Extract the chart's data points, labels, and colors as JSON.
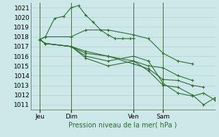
{
  "background_color": "#cce8e8",
  "grid_color": "#b0d0d0",
  "line_color": "#2d6a2d",
  "xlabel": "Pression niveau de la mer( hPa )",
  "yticks": [
    1011,
    1012,
    1013,
    1014,
    1015,
    1016,
    1017,
    1018,
    1019,
    1020,
    1021
  ],
  "ylim": [
    1010.5,
    1021.5
  ],
  "xtick_labels": [
    "Jeu",
    "Dim",
    "Ven",
    "Sam"
  ],
  "xtick_positions": [
    0.05,
    0.22,
    0.56,
    0.72
  ],
  "vline_positions": [
    0.05,
    0.22,
    0.56,
    0.72
  ],
  "xlim": [
    0.0,
    1.0
  ],
  "series": [
    {
      "x": [
        0.05,
        0.08,
        0.13,
        0.18,
        0.22,
        0.26,
        0.3,
        0.34,
        0.38,
        0.42,
        0.46,
        0.5,
        0.54,
        0.56
      ],
      "y": [
        1017.7,
        1018.0,
        1019.9,
        1020.1,
        1021.0,
        1021.2,
        1020.2,
        1019.5,
        1018.7,
        1018.2,
        1017.8,
        1017.8,
        1017.8,
        1017.8
      ]
    },
    {
      "x": [
        0.05,
        0.08,
        0.22,
        0.3,
        0.42,
        0.56,
        0.64,
        0.72,
        0.8,
        0.88
      ],
      "y": [
        1017.7,
        1018.0,
        1018.0,
        1018.7,
        1018.7,
        1018.2,
        1017.8,
        1016.3,
        1015.5,
        1015.2
      ]
    },
    {
      "x": [
        0.05,
        0.08,
        0.22,
        0.3,
        0.42,
        0.56,
        0.64,
        0.72,
        0.8,
        0.88
      ],
      "y": [
        1017.7,
        1017.3,
        1017.0,
        1016.5,
        1016.0,
        1015.5,
        1015.0,
        1014.8,
        1014.0,
        1013.5
      ]
    },
    {
      "x": [
        0.05,
        0.08,
        0.22,
        0.3,
        0.42,
        0.56,
        0.64,
        0.72,
        0.8,
        0.88,
        0.94
      ],
      "y": [
        1017.7,
        1017.3,
        1017.0,
        1016.3,
        1016.0,
        1015.2,
        1014.7,
        1013.6,
        1013.5,
        1013.0,
        1012.8
      ]
    },
    {
      "x": [
        0.05,
        0.08,
        0.22,
        0.3,
        0.42,
        0.56,
        0.64,
        0.72,
        0.8,
        0.88,
        0.94,
        1.0
      ],
      "y": [
        1017.7,
        1017.3,
        1017.0,
        1016.0,
        1015.5,
        1016.0,
        1015.5,
        1013.2,
        1012.2,
        1011.9,
        1012.2,
        1011.5
      ]
    },
    {
      "x": [
        0.05,
        0.08,
        0.22,
        0.3,
        0.42,
        0.56,
        0.64,
        0.72,
        0.8,
        0.88,
        0.94,
        1.0
      ],
      "y": [
        1017.7,
        1017.3,
        1017.0,
        1015.8,
        1015.0,
        1015.5,
        1014.5,
        1013.0,
        1012.8,
        1012.0,
        1011.0,
        1011.7
      ]
    }
  ]
}
